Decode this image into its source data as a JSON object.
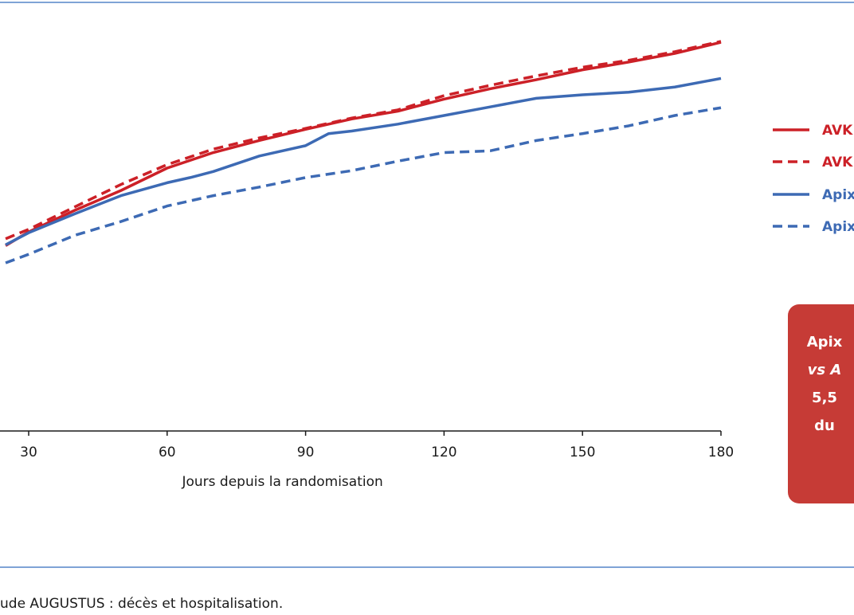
{
  "colors": {
    "red": "#cc2027",
    "blue": "#3d6ab4",
    "rule": "#7fa3d6",
    "callout_bg": "#c63b36"
  },
  "chart_data": {
    "type": "line",
    "xlabel": "Jours depuis la randomisation",
    "x_ticks": [
      30,
      60,
      90,
      120,
      150,
      180
    ],
    "xlim": [
      25,
      180
    ],
    "ylim": [
      0,
      1
    ],
    "legend": {
      "position": "right",
      "entries": [
        "AVK",
        "AVK",
        "Apix",
        "Apix"
      ]
    },
    "series": [
      {
        "name": "AVK",
        "style": "solid",
        "color": "red",
        "points": [
          [
            25,
            0.43
          ],
          [
            30,
            0.462
          ],
          [
            40,
            0.512
          ],
          [
            50,
            0.558
          ],
          [
            60,
            0.61
          ],
          [
            70,
            0.646
          ],
          [
            80,
            0.674
          ],
          [
            90,
            0.7
          ],
          [
            100,
            0.724
          ],
          [
            110,
            0.742
          ],
          [
            120,
            0.77
          ],
          [
            130,
            0.794
          ],
          [
            140,
            0.815
          ],
          [
            150,
            0.838
          ],
          [
            160,
            0.856
          ],
          [
            170,
            0.876
          ],
          [
            180,
            0.902
          ]
        ]
      },
      {
        "name": "AVK",
        "style": "dashed",
        "color": "red",
        "points": [
          [
            25,
            0.446
          ],
          [
            30,
            0.468
          ],
          [
            40,
            0.52
          ],
          [
            50,
            0.572
          ],
          [
            60,
            0.618
          ],
          [
            70,
            0.654
          ],
          [
            80,
            0.68
          ],
          [
            90,
            0.702
          ],
          [
            100,
            0.726
          ],
          [
            110,
            0.745
          ],
          [
            120,
            0.778
          ],
          [
            130,
            0.802
          ],
          [
            140,
            0.824
          ],
          [
            150,
            0.844
          ],
          [
            160,
            0.86
          ],
          [
            170,
            0.88
          ],
          [
            180,
            0.904
          ]
        ]
      },
      {
        "name": "Apix",
        "style": "solid",
        "color": "blue",
        "points": [
          [
            25,
            0.432
          ],
          [
            30,
            0.46
          ],
          [
            40,
            0.504
          ],
          [
            50,
            0.546
          ],
          [
            60,
            0.576
          ],
          [
            65,
            0.588
          ],
          [
            70,
            0.602
          ],
          [
            80,
            0.638
          ],
          [
            90,
            0.662
          ],
          [
            95,
            0.69
          ],
          [
            100,
            0.696
          ],
          [
            110,
            0.712
          ],
          [
            120,
            0.732
          ],
          [
            130,
            0.752
          ],
          [
            140,
            0.772
          ],
          [
            150,
            0.78
          ],
          [
            160,
            0.786
          ],
          [
            170,
            0.798
          ],
          [
            180,
            0.818
          ]
        ]
      },
      {
        "name": "Apix",
        "style": "dashed",
        "color": "blue",
        "points": [
          [
            25,
            0.39
          ],
          [
            30,
            0.41
          ],
          [
            40,
            0.454
          ],
          [
            50,
            0.486
          ],
          [
            60,
            0.522
          ],
          [
            70,
            0.546
          ],
          [
            80,
            0.566
          ],
          [
            90,
            0.588
          ],
          [
            100,
            0.604
          ],
          [
            110,
            0.626
          ],
          [
            120,
            0.646
          ],
          [
            130,
            0.65
          ],
          [
            140,
            0.674
          ],
          [
            150,
            0.69
          ],
          [
            160,
            0.708
          ],
          [
            170,
            0.732
          ],
          [
            180,
            0.75
          ]
        ]
      }
    ]
  },
  "callout": {
    "lines": [
      "Apix",
      "vs A",
      "5,5",
      "du"
    ]
  },
  "caption": "ude AUGUSTUS : décès et hospitalisation."
}
